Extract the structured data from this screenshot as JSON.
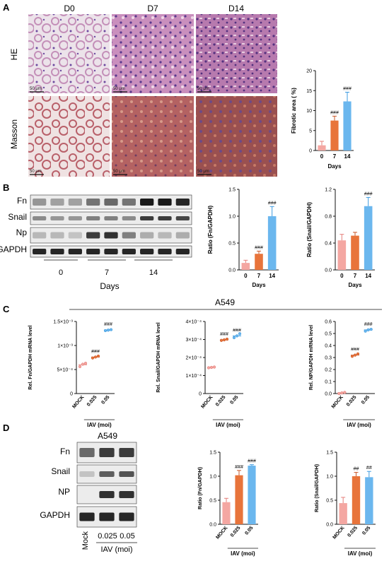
{
  "panel_a": {
    "letter": "A",
    "days": [
      "D0",
      "D7",
      "D14"
    ],
    "stains": [
      "HE",
      "Masson"
    ],
    "scalebar": "50 μm"
  },
  "panel_b": {
    "letter": "B",
    "blot_labels": [
      "Fn",
      "Snail",
      "Np",
      "GAPDH"
    ],
    "day_groups": [
      "0",
      "7",
      "14"
    ],
    "days_label": "Days"
  },
  "panel_c": {
    "letter": "C",
    "cell_line": "A549"
  },
  "panel_d": {
    "letter": "D",
    "cell_line": "A549",
    "blot_labels": [
      "Fn",
      "Snail",
      "NP",
      "GAPDH"
    ],
    "lanes": [
      "Mock",
      "0.025",
      "0.05"
    ],
    "iav_label": "IAV (moi)"
  },
  "colors": {
    "pink": "#f4a7a2",
    "orange": "#e8743b",
    "blue": "#6bb7ee"
  },
  "chart_data": [
    {
      "id": "a_fibrotic",
      "type": "bar",
      "categories": [
        "0",
        "7",
        "14"
      ],
      "values": [
        1.3,
        7.5,
        12.3
      ],
      "errors": [
        1.0,
        1.1,
        2.3
      ],
      "marks": [
        "",
        "###",
        "###"
      ],
      "ylabel": "Fibrotic area ( %)",
      "xlabel": "Days",
      "ylim": [
        0,
        20
      ],
      "yticks": [
        "0",
        "5",
        "10",
        "15",
        "20"
      ]
    },
    {
      "id": "b_fn",
      "type": "bar",
      "categories": [
        "0",
        "7",
        "14"
      ],
      "values": [
        0.13,
        0.3,
        1.0
      ],
      "errors": [
        0.05,
        0.05,
        0.18
      ],
      "marks": [
        "",
        "###",
        "###"
      ],
      "ylabel": "Ratio (Fn/GAPDH)",
      "xlabel": "Days",
      "ylim": [
        0,
        1.5
      ],
      "yticks": [
        "0.0",
        "0.5",
        "1.0",
        "1.5"
      ]
    },
    {
      "id": "b_snail",
      "type": "bar",
      "categories": [
        "0",
        "7",
        "14"
      ],
      "values": [
        0.44,
        0.51,
        0.95
      ],
      "errors": [
        0.09,
        0.05,
        0.13
      ],
      "marks": [
        "",
        "",
        "###"
      ],
      "ylabel": "Ratio (Snail/GAPDH)",
      "xlabel": "Days",
      "ylim": [
        0,
        1.2
      ],
      "yticks": [
        "0.0",
        "0.4",
        "0.8",
        "1.2"
      ]
    },
    {
      "id": "c_fn",
      "type": "scatter",
      "categories": [
        "MOCK",
        "0.025",
        "0.05"
      ],
      "means": [
        0.6,
        0.76,
        1.32
      ],
      "points": [
        [
          0.56,
          0.61,
          0.63
        ],
        [
          0.74,
          0.76,
          0.78
        ],
        [
          1.31,
          1.32,
          1.33
        ]
      ],
      "marks": [
        "",
        "###",
        "###"
      ],
      "ylabel": "Rel. Fn/GAPDH mRNA level",
      "xlabel": "IAV (moi)",
      "ylim": [
        0,
        1.5
      ],
      "yticks": [
        "0",
        "5×10⁻⁴",
        "1×10⁻³",
        "1.5×10⁻³"
      ]
    },
    {
      "id": "c_snail",
      "type": "scatter",
      "categories": [
        "MOCK",
        "0.025",
        "0.05"
      ],
      "means": [
        1.45,
        2.98,
        3.2
      ],
      "points": [
        [
          1.43,
          1.45,
          1.47
        ],
        [
          2.95,
          2.98,
          3.02
        ],
        [
          3.1,
          3.2,
          3.32
        ]
      ],
      "marks": [
        "",
        "###",
        "###"
      ],
      "ylabel": "Rel. Snail/GAPDH mRNA level",
      "xlabel": "IAV (moi)",
      "ylim": [
        0,
        4
      ],
      "yticks": [
        "0",
        "1×10⁻⁴",
        "2×10⁻⁴",
        "3×10⁻⁴",
        "4×10⁻⁴"
      ]
    },
    {
      "id": "c_np",
      "type": "scatter",
      "categories": [
        "MOCK",
        "0.025",
        "0.05"
      ],
      "means": [
        0.005,
        0.32,
        0.53
      ],
      "points": [
        [
          0.0,
          0.005,
          0.01
        ],
        [
          0.31,
          0.32,
          0.33
        ],
        [
          0.52,
          0.53,
          0.535
        ]
      ],
      "marks": [
        "",
        "###",
        "###"
      ],
      "ylabel": "Rel. NP/GAPDH mRNA level",
      "xlabel": "IAV (moi)",
      "ylim": [
        0,
        0.6
      ],
      "yticks": [
        "0.0",
        "0.1",
        "0.2",
        "0.3",
        "0.4",
        "0.5",
        "0.6"
      ]
    },
    {
      "id": "d_fn",
      "type": "bar",
      "categories": [
        "MOCK",
        "0.025",
        "0.05"
      ],
      "values": [
        0.46,
        1.02,
        1.22
      ],
      "errors": [
        0.08,
        0.1,
        0.02
      ],
      "marks": [
        "",
        "###",
        "###"
      ],
      "ylabel": "Ratio (Fn/GAPDH)",
      "xlabel": "IAV (moi)",
      "ylim": [
        0,
        1.5
      ],
      "yticks": [
        "0.0",
        "0.5",
        "1.0",
        "1.5"
      ]
    },
    {
      "id": "d_snail",
      "type": "bar",
      "categories": [
        "MOCK",
        "0.025",
        "0.05"
      ],
      "values": [
        0.44,
        1.0,
        0.98
      ],
      "errors": [
        0.12,
        0.08,
        0.12
      ],
      "marks": [
        "",
        "##",
        "##"
      ],
      "ylabel": "Ratio (Snail/GAPDH)",
      "xlabel": "IAV (moi)",
      "ylim": [
        0,
        1.5
      ],
      "yticks": [
        "0.0",
        "0.5",
        "1.0",
        "1.5"
      ]
    }
  ]
}
